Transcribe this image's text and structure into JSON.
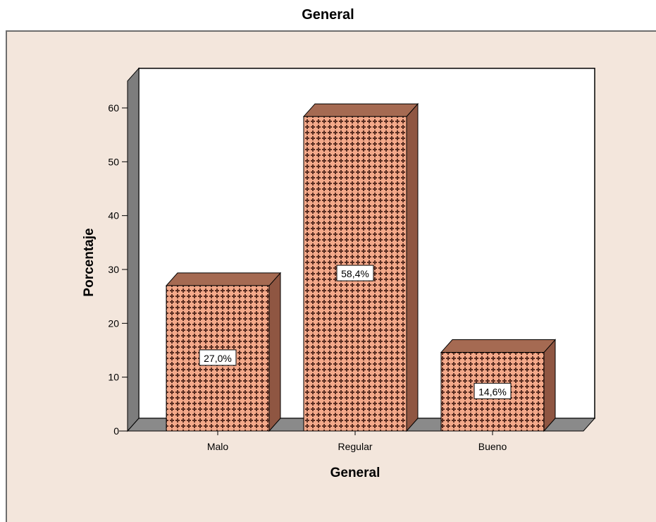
{
  "chart_data": {
    "type": "bar",
    "title": "General",
    "xlabel": "General",
    "ylabel": "Porcentaje",
    "categories": [
      "Malo",
      "Regular",
      "Bueno"
    ],
    "values": [
      27.0,
      58.4,
      14.6
    ],
    "data_labels": [
      "27,0%",
      "58,4%",
      "14,6%"
    ],
    "ylim": [
      0,
      65
    ],
    "yticks": [
      0,
      10,
      20,
      30,
      40,
      50,
      60
    ],
    "grid": false,
    "legend": "none",
    "style": "3d",
    "colors": {
      "bar_front": "#f4a98a",
      "bar_pattern": "#5a2e22",
      "bar_top": "#a56a52",
      "bar_side": "#8f5642",
      "floor": "#8a8a8a",
      "left_wall": "#7d7d7d",
      "plot_bg": "#ffffff",
      "chart_bg": "#f3e6dc"
    }
  }
}
